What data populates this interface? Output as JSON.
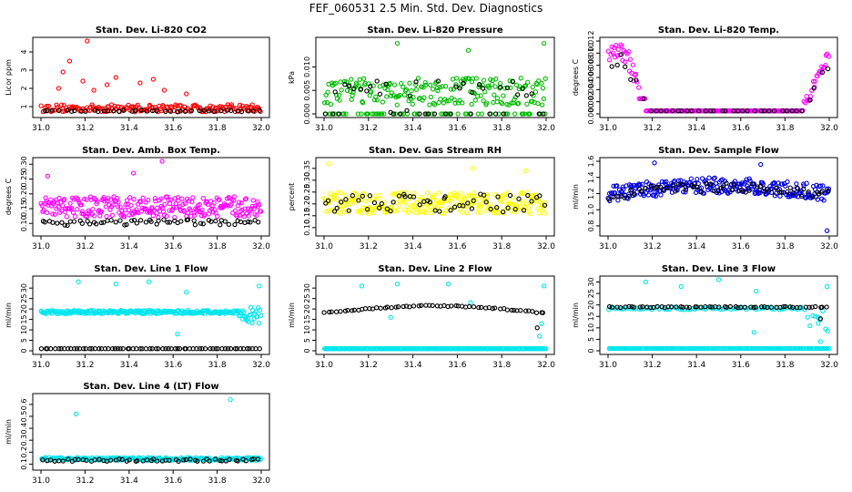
{
  "figure": {
    "title": "FEF_060531  2.5 Min. Std. Dev. Diagnostics"
  },
  "chart_data": [
    {
      "type": "scatter",
      "title": "Stan. Dev. Li-820 CO2",
      "ylabel": "Licor ppm",
      "xlim": [
        31.0,
        32.0
      ],
      "ylim": [
        0.6,
        4.6
      ],
      "xticks": [
        "31.0",
        "31.2",
        "31.4",
        "31.6",
        "31.8",
        "32.0"
      ],
      "yticks": [
        1,
        2,
        3,
        4
      ],
      "series": [
        {
          "color": "#ff0000",
          "base": 0.85,
          "spread": 0.4,
          "spikes": [
            [
              31.13,
              3.5
            ],
            [
              31.1,
              2.9
            ],
            [
              31.19,
              2.4
            ],
            [
              31.21,
              4.6
            ],
            [
              31.34,
              2.6
            ],
            [
              31.3,
              2.2
            ],
            [
              31.45,
              2.3
            ],
            [
              31.51,
              2.5
            ],
            [
              31.56,
              1.9
            ],
            [
              31.66,
              1.7
            ],
            [
              31.08,
              2.0
            ],
            [
              31.24,
              1.9
            ]
          ],
          "n": 180
        },
        {
          "color": "#000000",
          "base": 0.75,
          "spread": 0.1,
          "spikes": [],
          "n": 40
        }
      ]
    },
    {
      "type": "scatter",
      "title": "Stan. Dev. Li-820 Pressure",
      "ylabel": "kPa",
      "xlim": [
        31.0,
        32.0
      ],
      "ylim": [
        0.0,
        0.0155
      ],
      "xticks": [
        "31.0",
        "31.2",
        "31.4",
        "31.6",
        "31.8",
        "32.0"
      ],
      "yticks": [
        "0.000",
        "0.005",
        "0.010"
      ],
      "series": [
        {
          "color": "#00bb00",
          "base": 0.0,
          "spread": 0.0,
          "pattern": "bands",
          "bands": [
            0.0,
            0.003,
            0.0055,
            0.0065
          ],
          "spikes": [
            [
              31.33,
              0.015
            ],
            [
              31.65,
              0.0135
            ],
            [
              31.99,
              0.015
            ]
          ],
          "n": 260
        },
        {
          "color": "#000000",
          "base": 0.0,
          "spread": 0.0,
          "pattern": "bands",
          "bands": [
            0.0,
            0.0,
            0.0045,
            0.006
          ],
          "spikes": [],
          "n": 45
        }
      ]
    },
    {
      "type": "scatter",
      "title": "Stan. Dev. Li-820 Temp.",
      "ylabel": "degrees C",
      "xlim": [
        31.0,
        32.0
      ],
      "ylim": [
        0.0,
        0.012
      ],
      "xticks": [
        "31.0",
        "31.2",
        "31.4",
        "31.6",
        "31.8",
        "32.0"
      ],
      "yticks": [
        "0.000",
        "0.002",
        "0.004",
        "0.006",
        "0.008",
        "0.010",
        "0.012"
      ],
      "series": [
        {
          "color": "#ff00ff",
          "base": 0.0005,
          "spread": 0.0,
          "pattern": "ushape",
          "spikes": [],
          "n": 200
        },
        {
          "color": "#000000",
          "base": 0.0005,
          "spread": 0.0,
          "pattern": "ushape-small",
          "spikes": [],
          "n": 40
        }
      ]
    },
    {
      "type": "scatter",
      "title": "Stan. Dev. Amb. Box Temp.",
      "ylabel": "degrees C",
      "xlim": [
        31.0,
        32.0
      ],
      "ylim": [
        0.07,
        0.31
      ],
      "xticks": [
        "31.0",
        "31.2",
        "31.4",
        "31.6",
        "31.8",
        "32.0"
      ],
      "yticks": [
        "0.10",
        "0.15",
        "0.20",
        "0.25",
        "0.30"
      ],
      "series": [
        {
          "color": "#ff00ff",
          "base": 0.145,
          "spread": 0.07,
          "spikes": [
            [
              31.55,
              0.31
            ],
            [
              31.42,
              0.27
            ],
            [
              31.03,
              0.26
            ]
          ],
          "n": 260
        },
        {
          "color": "#000000",
          "base": 0.1,
          "spread": 0.02,
          "spikes": [],
          "n": 60
        }
      ]
    },
    {
      "type": "scatter",
      "title": "Stan. Dev. Gas Stream RH",
      "ylabel": "percent",
      "xlim": [
        31.0,
        32.0
      ],
      "ylim": [
        0.08,
        0.38
      ],
      "xticks": [
        "31.0",
        "31.2",
        "31.4",
        "31.6",
        "31.8",
        "32.0"
      ],
      "yticks": [
        "0.10",
        "0.15",
        "0.20",
        "0.25",
        "0.30",
        "0.35"
      ],
      "series": [
        {
          "color": "#ffff00",
          "base": 0.19,
          "spread": 0.09,
          "spikes": [
            [
              31.02,
              0.37
            ],
            [
              31.67,
              0.35
            ],
            [
              31.91,
              0.34
            ]
          ],
          "n": 260
        },
        {
          "color": "#000000",
          "base": 0.19,
          "spread": 0.08,
          "spikes": [],
          "n": 55
        }
      ]
    },
    {
      "type": "scatter",
      "title": "Stan. Dev. Sample Flow",
      "ylabel": "ml/min",
      "xlim": [
        31.0,
        32.0
      ],
      "ylim": [
        0.72,
        1.6
      ],
      "xticks": [
        "31.0",
        "31.2",
        "31.4",
        "31.6",
        "31.8",
        "32.0"
      ],
      "yticks": [
        "0.8",
        "1.0",
        "1.2",
        "1.4",
        "1.6"
      ],
      "series": [
        {
          "color": "#0000dd",
          "base": 1.2,
          "spread": 0.12,
          "pattern": "hump",
          "spikes": [
            [
              31.21,
              1.58
            ],
            [
              31.69,
              1.56
            ],
            [
              31.99,
              0.74
            ]
          ],
          "n": 260
        },
        {
          "color": "#000000",
          "base": 1.18,
          "spread": 0.07,
          "pattern": "hump",
          "spikes": [],
          "n": 60
        }
      ]
    },
    {
      "type": "scatter",
      "title": "Stan. Dev. Line 1 Flow",
      "ylabel": "ml/min",
      "xlim": [
        31.0,
        32.0
      ],
      "ylim": [
        0,
        34
      ],
      "xticks": [
        "31.0",
        "31.2",
        "31.4",
        "31.6",
        "31.8",
        "32.0"
      ],
      "yticks": [
        "0",
        "5",
        "10",
        "15",
        "20",
        "25",
        "30"
      ],
      "series": [
        {
          "color": "#00e5ee",
          "base": 18.5,
          "spread": 0.8,
          "pattern": "flat-tail",
          "spikes": [
            [
              31.17,
              33
            ],
            [
              31.34,
              32
            ],
            [
              31.49,
              33
            ],
            [
              31.66,
              28
            ],
            [
              31.62,
              8
            ],
            [
              31.99,
              31
            ]
          ],
          "n": 260
        },
        {
          "color": "#000000",
          "base": 1.0,
          "spread": 0.0,
          "spikes": [],
          "n": 70
        }
      ]
    },
    {
      "type": "scatter",
      "title": "Stan. Dev. Line 2 Flow",
      "ylabel": "ml/min",
      "xlim": [
        31.0,
        32.0
      ],
      "ylim": [
        0,
        34
      ],
      "xticks": [
        "31.0",
        "31.2",
        "31.4",
        "31.6",
        "31.8",
        "32.0"
      ],
      "yticks": [
        "0",
        "5",
        "10",
        "15",
        "20",
        "25",
        "30"
      ],
      "series": [
        {
          "color": "#00e5ee",
          "base": 1.0,
          "spread": 0.0,
          "spikes": [
            [
              31.17,
              31
            ],
            [
              31.33,
              32
            ],
            [
              31.56,
              32
            ],
            [
              31.66,
              23
            ],
            [
              31.3,
              16
            ],
            [
              31.98,
              13
            ],
            [
              31.97,
              7
            ],
            [
              31.99,
              31
            ]
          ],
          "n": 220
        },
        {
          "color": "#000000",
          "base": 18,
          "spread": 0.6,
          "pattern": "arch",
          "spikes": [
            [
              31.96,
              11
            ]
          ],
          "n": 60
        }
      ]
    },
    {
      "type": "scatter",
      "title": "Stan. Dev. Line 3 Flow",
      "ylabel": "ml/min",
      "xlim": [
        31.0,
        32.0
      ],
      "ylim": [
        0,
        31
      ],
      "xticks": [
        "31.0",
        "31.2",
        "31.4",
        "31.6",
        "31.8",
        "32.0"
      ],
      "yticks": [
        "0",
        "5",
        "10",
        "15",
        "20",
        "25",
        "30"
      ],
      "series": [
        {
          "color": "#00e5ee",
          "base": 1.0,
          "spread": 0.0,
          "pattern": "with-upper",
          "spikes": [
            [
              31.17,
              30
            ],
            [
              31.33,
              28
            ],
            [
              31.5,
              31
            ],
            [
              31.66,
              8
            ],
            [
              31.67,
              26
            ],
            [
              31.95,
              12
            ],
            [
              31.96,
              4
            ],
            [
              31.99,
              28
            ]
          ],
          "n": 260
        },
        {
          "color": "#000000",
          "base": 19,
          "spread": 0.5,
          "spikes": [
            [
              31.96,
              14
            ]
          ],
          "n": 60
        }
      ]
    },
    {
      "type": "scatter",
      "title": "Stan. Dev. Line 4 (LT) Flow",
      "ylabel": "ml/min",
      "xlim": [
        31.0,
        32.0
      ],
      "ylim": [
        0.08,
        0.66
      ],
      "xticks": [
        "31.0",
        "31.2",
        "31.4",
        "31.6",
        "31.8",
        "32.0"
      ],
      "yticks": [
        "0.1",
        "0.2",
        "0.3",
        "0.4",
        "0.5",
        "0.6"
      ],
      "series": [
        {
          "color": "#00e5ee",
          "base": 0.14,
          "spread": 0.025,
          "spikes": [
            [
              31.16,
              0.52
            ],
            [
              31.86,
              0.64
            ]
          ],
          "n": 240
        },
        {
          "color": "#000000",
          "base": 0.13,
          "spread": 0.02,
          "spikes": [],
          "n": 55
        }
      ]
    }
  ]
}
